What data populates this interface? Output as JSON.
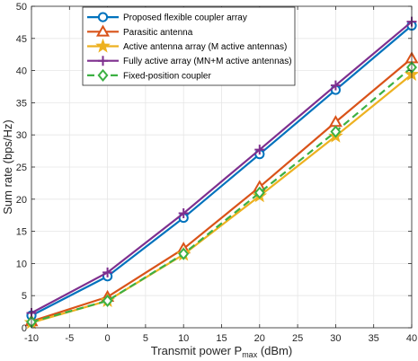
{
  "chart_data": {
    "type": "line",
    "title": "",
    "xlabel": {
      "main": "Transmit power P",
      "sub": "max",
      "unit": " (dBm)"
    },
    "ylabel": "Sum rate (bps/Hz)",
    "xlim": [
      -10,
      40
    ],
    "ylim": [
      0,
      50
    ],
    "xticks": [
      -10,
      -5,
      0,
      5,
      10,
      15,
      20,
      25,
      30,
      35,
      40
    ],
    "yticks": [
      0,
      5,
      10,
      15,
      20,
      25,
      30,
      35,
      40,
      45,
      50
    ],
    "grid": true,
    "legend_position": "top-left",
    "x": [
      -10,
      0,
      10,
      20,
      30,
      40
    ],
    "series": [
      {
        "name": "Proposed flexible coupler array",
        "values": [
          1.9,
          8.0,
          17.1,
          27.0,
          37.0,
          47.0
        ],
        "color": "#0072BD",
        "marker": "circle",
        "dash": "solid"
      },
      {
        "name": "Parasitic antenna",
        "values": [
          1.0,
          4.8,
          12.3,
          21.9,
          32.0,
          41.9
        ],
        "color": "#D95319",
        "marker": "triangle",
        "dash": "solid"
      },
      {
        "name": "Active antenna array (M active antennas)",
        "values": [
          0.8,
          4.2,
          11.4,
          20.5,
          29.8,
          39.4
        ],
        "color": "#EDB120",
        "marker": "star",
        "dash": "solid"
      },
      {
        "name": "Fully active array (MN+M active antennas)",
        "values": [
          2.3,
          8.6,
          17.8,
          27.7,
          37.7,
          47.6
        ],
        "color": "#7E2F8E",
        "marker": "plus",
        "dash": "solid"
      },
      {
        "name": "Fixed-position coupler",
        "values": [
          0.9,
          4.2,
          11.5,
          21.0,
          30.5,
          40.5
        ],
        "color": "#3CB043",
        "marker": "diamond",
        "dash": "dashed"
      }
    ]
  }
}
